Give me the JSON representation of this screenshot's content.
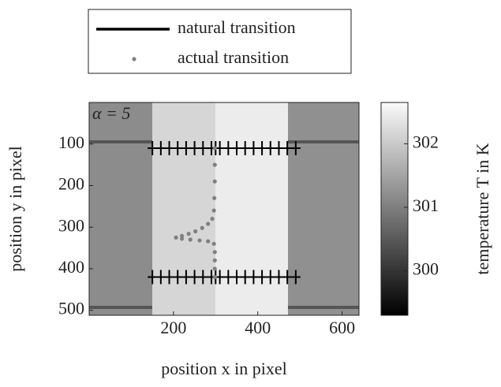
{
  "chart_data": {
    "type": "line",
    "annotation": "α = 5",
    "xlabel": "position x in pixel",
    "ylabel": "position y in pixel",
    "colorbar_label": "temperature T in K",
    "xlim": [
      0,
      640
    ],
    "ylim": [
      0,
      512
    ],
    "y_reversed": true,
    "xticks": [
      200,
      400,
      600
    ],
    "yticks": [
      100,
      200,
      300,
      400,
      500
    ],
    "clim": [
      299.3,
      302.65
    ],
    "cticks": [
      300,
      301,
      302
    ],
    "series": [
      {
        "name": "natural transition",
        "color": "#000000",
        "marker": "+",
        "x": [
          150,
          170,
          190,
          210,
          230,
          250,
          270,
          290,
          310,
          330,
          350,
          370,
          390,
          410,
          430,
          450,
          470,
          490,
          null,
          300,
          300,
          null,
          150,
          170,
          190,
          210,
          230,
          250,
          270,
          290,
          310,
          330,
          350,
          370,
          390,
          410,
          430,
          450,
          470,
          490
        ],
        "values": [
          110,
          110,
          110,
          110,
          110,
          110,
          110,
          110,
          110,
          110,
          110,
          110,
          110,
          110,
          110,
          110,
          110,
          110,
          null,
          110,
          420,
          null,
          420,
          420,
          420,
          420,
          420,
          420,
          420,
          420,
          420,
          420,
          420,
          420,
          420,
          420,
          420,
          420,
          420,
          420
        ]
      },
      {
        "name": "actual transition",
        "color": "#808080",
        "marker": "o",
        "x": [
          298,
          298,
          298,
          297,
          296,
          292,
          282,
          268,
          252,
          236,
          220,
          206,
          220,
          240,
          262,
          282,
          296,
          298,
          298,
          298,
          298
        ],
        "values": [
          110,
          150,
          190,
          230,
          260,
          280,
          292,
          302,
          310,
          316,
          321,
          325,
          328,
          330,
          332,
          334,
          340,
          360,
          380,
          400,
          420
        ]
      }
    ]
  }
}
